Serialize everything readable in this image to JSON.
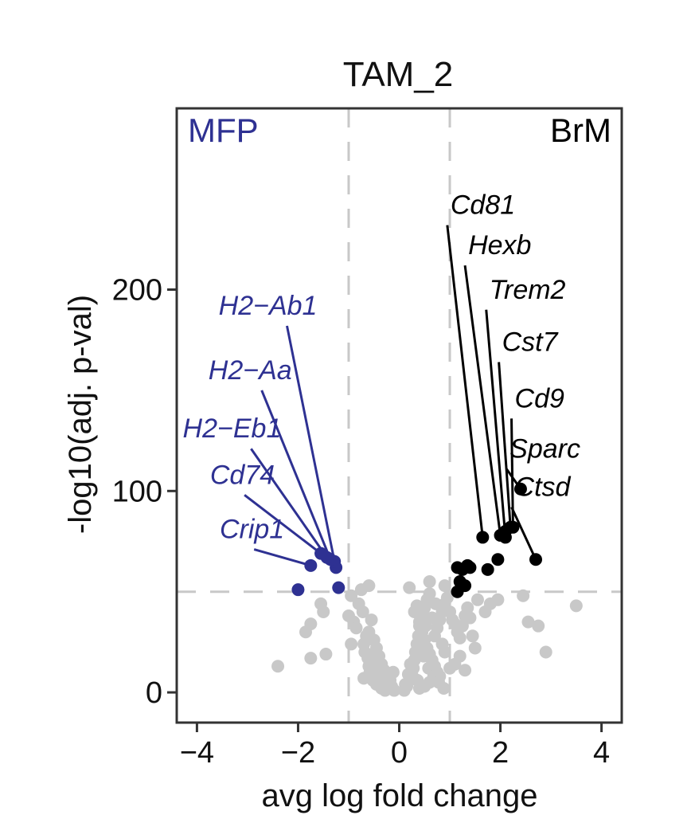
{
  "chart_data": {
    "type": "scatter",
    "title": "TAM_2",
    "xlabel": "avg log fold change",
    "ylabel": "-log10(adj. p-val)",
    "xlim": [
      -4.4,
      4.4
    ],
    "ylim": [
      -15,
      290
    ],
    "xticks": [
      -4,
      -2,
      0,
      2,
      4
    ],
    "xtick_labels": [
      "−4",
      "−2",
      "0",
      "2",
      "4"
    ],
    "yticks": [
      0,
      100,
      200
    ],
    "ytick_labels": [
      "0",
      "100",
      "200"
    ],
    "thresholds": {
      "x": [
        -1,
        1
      ],
      "y": 50
    },
    "corner_labels": {
      "left": "MFP",
      "right": "BrM"
    },
    "colors": {
      "left": "#2e3192",
      "right": "#000000",
      "ns": "#c8c8c8",
      "guide": "#c8c8c8",
      "axis": "#333333"
    },
    "labeled_genes": [
      {
        "gene": "H2−Ab1",
        "group": "left",
        "x": -1.28,
        "y": 65,
        "lx": -2.22,
        "ly": 182
      },
      {
        "gene": "H2−Aa",
        "group": "left",
        "x": -1.36,
        "y": 66,
        "lx": -2.72,
        "ly": 150
      },
      {
        "gene": "H2−Eb1",
        "group": "left",
        "x": -1.43,
        "y": 67,
        "lx": -2.93,
        "ly": 121
      },
      {
        "gene": "Cd74",
        "group": "left",
        "x": -1.55,
        "y": 69,
        "lx": -3.06,
        "ly": 98
      },
      {
        "gene": "Crip1",
        "group": "left",
        "x": -1.75,
        "y": 63,
        "lx": -2.87,
        "ly": 71
      },
      {
        "gene": "Cd81",
        "group": "right",
        "x": 1.65,
        "y": 77,
        "lx": 0.95,
        "ly": 232
      },
      {
        "gene": "Hexb",
        "group": "right",
        "x": 2.0,
        "y": 78,
        "lx": 1.3,
        "ly": 212
      },
      {
        "gene": "Trem2",
        "group": "right",
        "x": 2.1,
        "y": 77,
        "lx": 1.72,
        "ly": 190
      },
      {
        "gene": "Cst7",
        "group": "right",
        "x": 2.2,
        "y": 82,
        "lx": 1.97,
        "ly": 164
      },
      {
        "gene": "Cd9",
        "group": "right",
        "x": 2.25,
        "y": 82,
        "lx": 2.22,
        "ly": 136
      },
      {
        "gene": "Sparc",
        "group": "right",
        "x": 2.4,
        "y": 101,
        "lx": 2.12,
        "ly": 111
      },
      {
        "gene": "Ctsd",
        "group": "right",
        "x": 2.7,
        "y": 66,
        "lx": 2.22,
        "ly": 92
      }
    ],
    "extra_significant": [
      {
        "group": "left",
        "x": -1.25,
        "y": 62
      },
      {
        "group": "left",
        "x": -1.2,
        "y": 52
      },
      {
        "group": "left",
        "x": -2.0,
        "y": 51
      },
      {
        "group": "right",
        "x": 1.15,
        "y": 62
      },
      {
        "group": "right",
        "x": 1.15,
        "y": 50
      },
      {
        "group": "right",
        "x": 1.2,
        "y": 55
      },
      {
        "group": "right",
        "x": 1.25,
        "y": 61
      },
      {
        "group": "right",
        "x": 1.3,
        "y": 53
      },
      {
        "group": "right",
        "x": 1.35,
        "y": 63
      },
      {
        "group": "right",
        "x": 1.4,
        "y": 62
      },
      {
        "group": "right",
        "x": 1.75,
        "y": 61
      },
      {
        "group": "right",
        "x": 1.95,
        "y": 66
      },
      {
        "group": "right",
        "x": 2.1,
        "y": 80
      }
    ],
    "ns_points": [
      [
        -2.4,
        13
      ],
      [
        -1.85,
        30
      ],
      [
        -1.75,
        34
      ],
      [
        -1.55,
        44
      ],
      [
        -1.5,
        40
      ],
      [
        -1.45,
        19
      ],
      [
        -1.75,
        17
      ],
      [
        -0.95,
        48
      ],
      [
        -0.75,
        51
      ],
      [
        -0.6,
        53
      ],
      [
        -1.0,
        38
      ],
      [
        -0.9,
        35
      ],
      [
        -0.85,
        32
      ],
      [
        -0.55,
        36
      ],
      [
        -0.6,
        30
      ],
      [
        -0.5,
        26
      ],
      [
        -0.45,
        22
      ],
      [
        -0.4,
        18
      ],
      [
        -0.35,
        14
      ],
      [
        -0.3,
        11
      ],
      [
        -0.25,
        8
      ],
      [
        -0.2,
        5
      ],
      [
        -0.15,
        3
      ],
      [
        -0.1,
        1
      ],
      [
        -0.55,
        14
      ],
      [
        -0.5,
        11
      ],
      [
        -0.45,
        9
      ],
      [
        -0.38,
        7
      ],
      [
        -0.3,
        5
      ],
      [
        -0.22,
        3
      ],
      [
        -0.7,
        24
      ],
      [
        -0.68,
        20
      ],
      [
        -0.62,
        17
      ],
      [
        -0.6,
        13
      ],
      [
        -0.58,
        10
      ],
      [
        -0.52,
        6
      ],
      [
        -0.45,
        4
      ],
      [
        -0.35,
        2
      ],
      [
        -0.28,
        1
      ],
      [
        -0.18,
        6
      ],
      [
        -0.12,
        10
      ],
      [
        -0.8,
        44
      ],
      [
        -0.72,
        40
      ],
      [
        -0.65,
        28
      ],
      [
        -0.5,
        19
      ],
      [
        -0.42,
        15
      ],
      [
        -0.95,
        24
      ],
      [
        -0.7,
        7
      ],
      [
        0.1,
        1
      ],
      [
        0.15,
        3
      ],
      [
        0.2,
        6
      ],
      [
        0.25,
        9
      ],
      [
        0.28,
        12
      ],
      [
        0.3,
        16
      ],
      [
        0.32,
        20
      ],
      [
        0.35,
        24
      ],
      [
        0.38,
        28
      ],
      [
        0.4,
        33
      ],
      [
        0.45,
        38
      ],
      [
        0.5,
        42
      ],
      [
        0.55,
        46
      ],
      [
        0.6,
        49
      ],
      [
        0.3,
        40
      ],
      [
        0.35,
        43
      ],
      [
        0.4,
        35
      ],
      [
        0.45,
        30
      ],
      [
        0.5,
        26
      ],
      [
        0.55,
        22
      ],
      [
        0.6,
        19
      ],
      [
        0.65,
        16
      ],
      [
        0.7,
        13
      ],
      [
        0.75,
        10
      ],
      [
        0.8,
        8
      ],
      [
        0.6,
        5
      ],
      [
        0.5,
        3
      ],
      [
        0.4,
        2
      ],
      [
        0.7,
        28
      ],
      [
        0.75,
        32
      ],
      [
        0.8,
        36
      ],
      [
        0.85,
        40
      ],
      [
        0.9,
        44
      ],
      [
        0.95,
        47
      ],
      [
        1.0,
        40
      ],
      [
        1.05,
        36
      ],
      [
        1.1,
        34
      ],
      [
        1.15,
        30
      ],
      [
        1.2,
        27
      ],
      [
        1.25,
        33
      ],
      [
        1.3,
        38
      ],
      [
        1.35,
        42
      ],
      [
        1.4,
        37
      ],
      [
        1.45,
        28
      ],
      [
        1.5,
        22
      ],
      [
        1.2,
        18
      ],
      [
        1.1,
        14
      ],
      [
        1.3,
        11
      ],
      [
        1.0,
        12
      ],
      [
        0.9,
        20
      ],
      [
        0.85,
        24
      ],
      [
        0.2,
        52
      ],
      [
        0.6,
        55
      ],
      [
        0.9,
        53
      ],
      [
        1.55,
        46
      ],
      [
        1.7,
        40
      ],
      [
        1.8,
        44
      ],
      [
        1.95,
        46
      ],
      [
        2.45,
        48
      ],
      [
        2.55,
        35
      ],
      [
        2.75,
        33
      ],
      [
        2.9,
        20
      ],
      [
        3.5,
        43
      ],
      [
        0.65,
        37
      ],
      [
        0.72,
        44
      ],
      [
        0.52,
        33
      ],
      [
        0.42,
        27
      ],
      [
        0.48,
        18
      ],
      [
        0.58,
        12
      ],
      [
        0.68,
        8
      ],
      [
        0.78,
        5
      ],
      [
        0.88,
        2
      ],
      [
        0.36,
        6
      ],
      [
        0.22,
        14
      ],
      [
        0.18,
        9
      ],
      [
        0.12,
        4
      ]
    ]
  }
}
